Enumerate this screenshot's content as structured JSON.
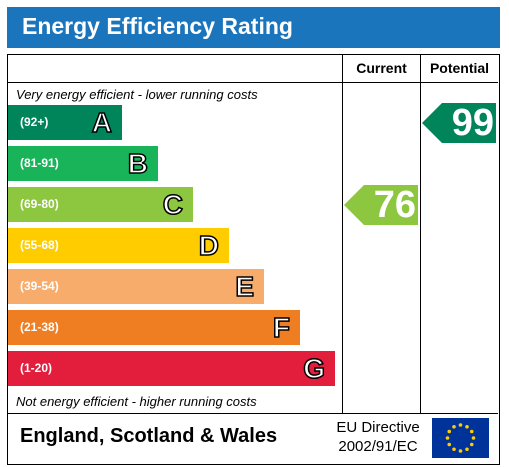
{
  "title": "Energy Efficiency Rating",
  "columns": {
    "current": "Current",
    "potential": "Potential"
  },
  "top_note": "Very energy efficient - lower running costs",
  "bottom_note": "Not energy efficient - higher running costs",
  "footer": {
    "region": "England, Scotland & Wales",
    "directive_line1": "EU Directive",
    "directive_line2": "2002/91/EC"
  },
  "chart_data": {
    "type": "bar",
    "categories": [
      "A",
      "B",
      "C",
      "D",
      "E",
      "F",
      "G"
    ],
    "ranges": [
      "(92+)",
      "(81-91)",
      "(69-80)",
      "(55-68)",
      "(39-54)",
      "(21-38)",
      "(1-20)"
    ],
    "colors": [
      "#00855b",
      "#19b459",
      "#8dc63f",
      "#ffcc00",
      "#f7ac6b",
      "#ef7d22",
      "#e31d3c"
    ],
    "current": {
      "value": 76,
      "band": "C",
      "color": "#8dc63f"
    },
    "potential": {
      "value": 99,
      "band": "A",
      "color": "#00855b"
    }
  }
}
